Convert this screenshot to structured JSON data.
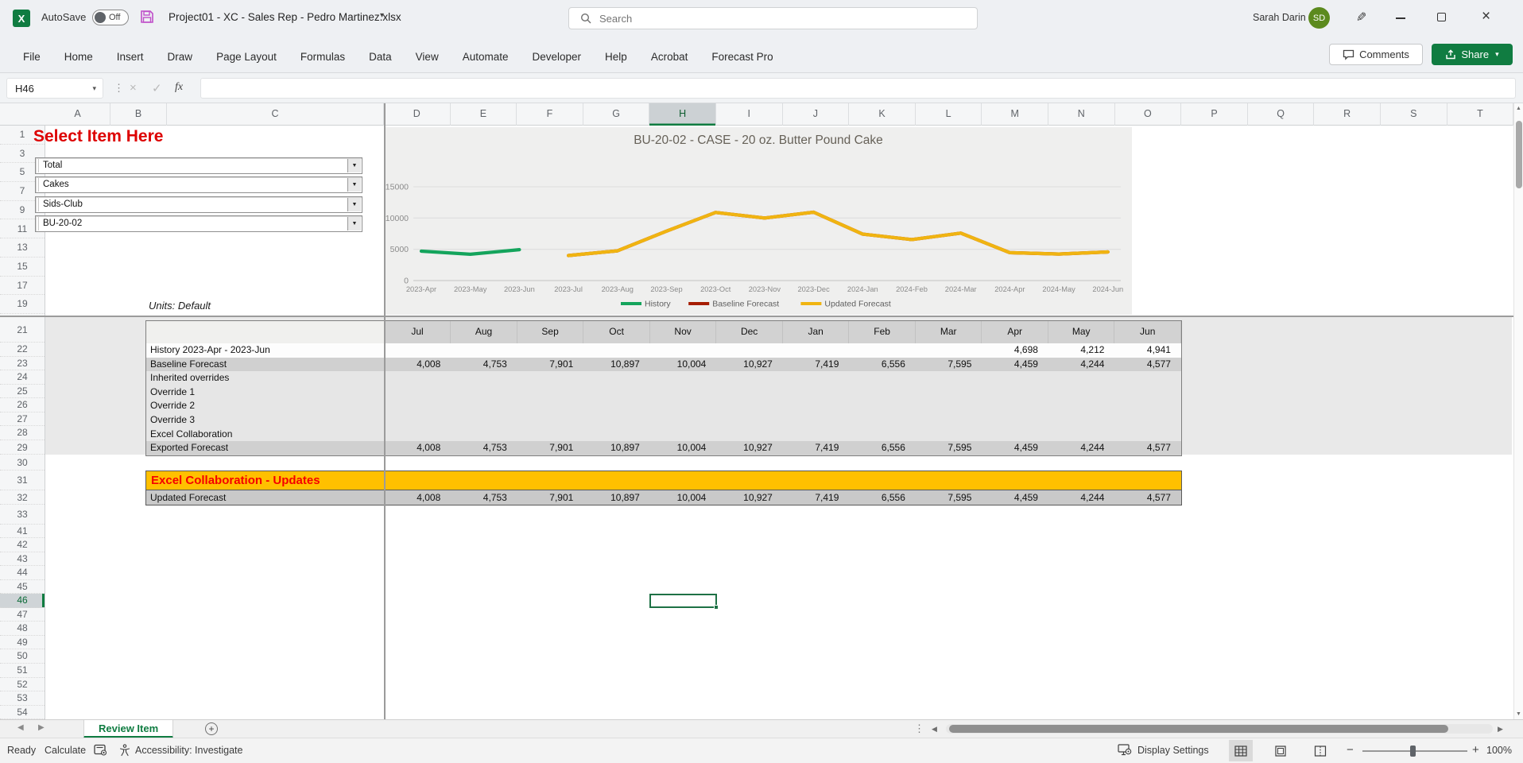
{
  "app": {
    "autosave_label": "AutoSave",
    "autosave_state": "Off",
    "file_name": "Project01 - XC - Sales Rep - Pedro Martinez.xlsx",
    "search_placeholder": "Search",
    "user_name": "Sarah Darin",
    "user_initials": "SD"
  },
  "ribbon": {
    "tabs": [
      "File",
      "Home",
      "Insert",
      "Draw",
      "Page Layout",
      "Formulas",
      "Data",
      "View",
      "Automate",
      "Developer",
      "Help",
      "Acrobat",
      "Forecast Pro"
    ],
    "comments_label": "Comments",
    "share_label": "Share"
  },
  "formula_bar": {
    "cell_reference": "H46",
    "formula_value": "",
    "insert_function_label": "fx"
  },
  "sheet": {
    "visible_columns": [
      "A",
      "B",
      "C",
      "D",
      "E",
      "F",
      "G",
      "H",
      "I",
      "J",
      "K",
      "L",
      "M",
      "N",
      "O",
      "P",
      "Q",
      "R",
      "S",
      "T"
    ],
    "selected_column": "H",
    "visible_rows_top": [
      "1",
      "3",
      "5",
      "7",
      "9",
      "11",
      "13",
      "15",
      "17",
      "19"
    ],
    "visible_rows_middle": [
      "21",
      "22",
      "23",
      "24",
      "25",
      "26",
      "27",
      "28",
      "29",
      "30",
      "31",
      "32",
      "33"
    ],
    "visible_rows_bottom": [
      "41",
      "42",
      "43",
      "44",
      "45",
      "46",
      "47",
      "48",
      "49",
      "50",
      "51",
      "52",
      "53",
      "54"
    ],
    "selected_row": "46",
    "selected_cell": "H46",
    "heading": "Select Item Here",
    "item_selectors": [
      "Total",
      "Cakes",
      "Sids-Club",
      "BU-20-02"
    ],
    "units_label": "Units: Default"
  },
  "chart_data": {
    "type": "line",
    "title": "BU-20-02 - CASE - 20 oz. Butter Pound Cake",
    "x": [
      "2023-Apr",
      "2023-May",
      "2023-Jun",
      "2023-Jul",
      "2023-Aug",
      "2023-Sep",
      "2023-Oct",
      "2023-Nov",
      "2023-Dec",
      "2024-Jan",
      "2024-Feb",
      "2024-Mar",
      "2024-Apr",
      "2024-May",
      "2024-Jun"
    ],
    "ylim": [
      0,
      15000
    ],
    "yticks": [
      0,
      5000,
      10000,
      15000
    ],
    "grid": true,
    "legend_position": "bottom",
    "series": [
      {
        "name": "History",
        "color": "#14a45c",
        "values": [
          4698,
          4212,
          4941,
          null,
          null,
          null,
          null,
          null,
          null,
          null,
          null,
          null,
          null,
          null,
          null
        ]
      },
      {
        "name": "Baseline Forecast",
        "color": "#a61c00",
        "values": [
          null,
          null,
          null,
          4008,
          4753,
          7901,
          10897,
          10004,
          10927,
          7419,
          6556,
          7595,
          4459,
          4244,
          4577
        ]
      },
      {
        "name": "Updated Forecast",
        "color": "#f0b411",
        "values": [
          null,
          null,
          null,
          4008,
          4753,
          7901,
          10897,
          10004,
          10927,
          7419,
          6556,
          7595,
          4459,
          4244,
          4577
        ]
      }
    ]
  },
  "forecast_table": {
    "months": [
      "Jul",
      "Aug",
      "Sep",
      "Oct",
      "Nov",
      "Dec",
      "Jan",
      "Feb",
      "Mar",
      "Apr",
      "May",
      "Jun"
    ],
    "rows": [
      {
        "label": "History 2023-Apr - 2023-Jun",
        "style": "white",
        "values": [
          "",
          "",
          "",
          "",
          "",
          "",
          "",
          "",
          "",
          "4,698",
          "4,212",
          "4,941"
        ]
      },
      {
        "label": "Baseline Forecast",
        "style": "dark",
        "values": [
          "4,008",
          "4,753",
          "7,901",
          "10,897",
          "10,004",
          "10,927",
          "7,419",
          "6,556",
          "7,595",
          "4,459",
          "4,244",
          "4,577"
        ]
      },
      {
        "label": "Inherited overrides",
        "style": "light",
        "values": [
          "",
          "",
          "",
          "",
          "",
          "",
          "",
          "",
          "",
          "",
          "",
          ""
        ]
      },
      {
        "label": "Override 1",
        "style": "light",
        "values": [
          "",
          "",
          "",
          "",
          "",
          "",
          "",
          "",
          "",
          "",
          "",
          ""
        ]
      },
      {
        "label": "Override 2",
        "style": "light",
        "values": [
          "",
          "",
          "",
          "",
          "",
          "",
          "",
          "",
          "",
          "",
          "",
          ""
        ]
      },
      {
        "label": "Override 3",
        "style": "light",
        "values": [
          "",
          "",
          "",
          "",
          "",
          "",
          "",
          "",
          "",
          "",
          "",
          ""
        ]
      },
      {
        "label": "Excel Collaboration",
        "style": "light",
        "values": [
          "",
          "",
          "",
          "",
          "",
          "",
          "",
          "",
          "",
          "",
          "",
          ""
        ]
      },
      {
        "label": "Exported Forecast",
        "style": "dark",
        "values": [
          "4,008",
          "4,753",
          "7,901",
          "10,897",
          "10,004",
          "10,927",
          "7,419",
          "6,556",
          "7,595",
          "4,459",
          "4,244",
          "4,577"
        ]
      }
    ],
    "banner_label": "Excel Collaboration - Updates",
    "updated_row": {
      "label": "Updated Forecast",
      "values": [
        "4,008",
        "4,753",
        "7,901",
        "10,897",
        "10,004",
        "10,927",
        "7,419",
        "6,556",
        "7,595",
        "4,459",
        "4,244",
        "4,577"
      ]
    }
  },
  "sheet_tabs": {
    "active_tab": "Review Item"
  },
  "status_bar": {
    "mode": "Ready",
    "calculate_label": "Calculate",
    "accessibility_label": "Accessibility: Investigate",
    "display_settings_label": "Display Settings",
    "zoom_level": "100%"
  },
  "colors": {
    "excel_green": "#107c41",
    "banner_orange": "#ffc000",
    "heading_red": "#dd0000",
    "history_green": "#14a45c",
    "baseline_red": "#a61c00",
    "updated_gold": "#f0b411"
  }
}
